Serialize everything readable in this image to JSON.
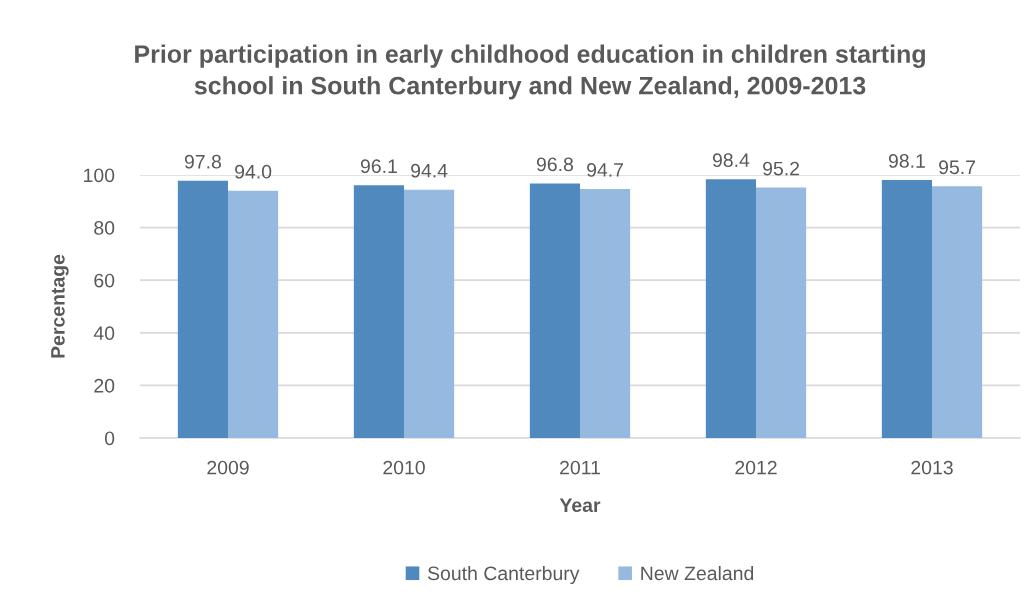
{
  "chart_data": {
    "type": "bar",
    "title": "Prior participation in early childhood education in children starting\nschool in South Canterbury and New Zealand, 2009-2013",
    "xlabel": "Year",
    "ylabel": "Percentage",
    "categories": [
      "2009",
      "2010",
      "2011",
      "2012",
      "2013"
    ],
    "series": [
      {
        "name": "South Canterbury",
        "color": "#4f89bd",
        "values": [
          97.8,
          96.1,
          96.8,
          98.4,
          98.1
        ],
        "value_labels": [
          "97.8",
          "96.1",
          "96.8",
          "98.4",
          "98.1"
        ]
      },
      {
        "name": "New Zealand",
        "color": "#96b9df",
        "values": [
          94.0,
          94.4,
          94.7,
          95.2,
          95.7
        ],
        "value_labels": [
          "94.0",
          "94.4",
          "94.7",
          "95.2",
          "95.7"
        ]
      }
    ],
    "ylim": [
      0,
      100
    ],
    "yticks": [
      0,
      20,
      40,
      60,
      80,
      100
    ],
    "grid": "y",
    "legend": "bottom"
  }
}
